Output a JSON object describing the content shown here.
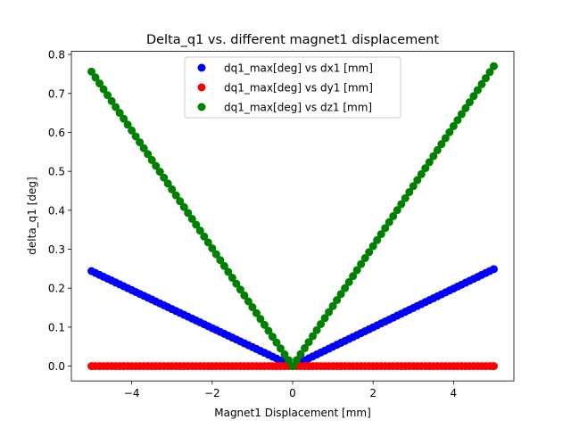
{
  "chart_data": {
    "type": "scatter",
    "title": "Delta_q1 vs. different magnet1 displacement",
    "xlabel": "Magnet1 Displacement [mm]",
    "ylabel": "delta_q1 [deg]",
    "xlim": [
      -5.5,
      5.5
    ],
    "ylim": [
      -0.038,
      0.808
    ],
    "x_ticks": [
      -4,
      -2,
      0,
      2,
      4
    ],
    "x_tick_labels": [
      "−4",
      "−2",
      "0",
      "2",
      "4"
    ],
    "y_ticks": [
      0.0,
      0.1,
      0.2,
      0.3,
      0.4,
      0.5,
      0.6,
      0.7,
      0.8
    ],
    "y_tick_labels": [
      "0.0",
      "0.1",
      "0.2",
      "0.3",
      "0.4",
      "0.5",
      "0.6",
      "0.7",
      "0.8"
    ],
    "grid": false,
    "legend_position": "top-center",
    "x_range": {
      "start": -5.0,
      "end": 5.0,
      "num_points": 101
    },
    "series": [
      {
        "name": "dq1_max[deg] vs dx1 [mm]",
        "color": "#0000ff",
        "slope_neg": 0.0488,
        "slope_pos": 0.0498
      },
      {
        "name": "dq1_max[deg] vs dy1 [mm]",
        "color": "#ff0000",
        "slope_neg": 0.0,
        "slope_pos": 0.0
      },
      {
        "name": "dq1_max[deg] vs dz1 [mm]",
        "color": "#008000",
        "slope_neg": 0.1512,
        "slope_pos": 0.154
      }
    ]
  }
}
